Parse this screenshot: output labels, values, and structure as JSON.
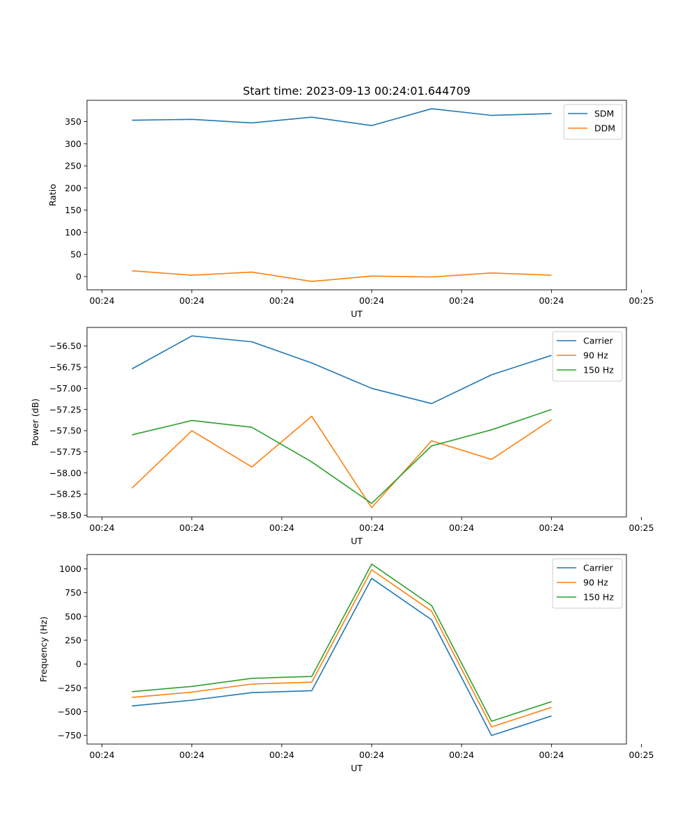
{
  "figure": {
    "title": "Start time: 2023-09-13 00:24:01.644709"
  },
  "colors": {
    "c0": "#1f77b4",
    "c1": "#ff7f0e",
    "c2": "#2ca02c"
  },
  "chart_data": [
    {
      "type": "line",
      "title": "Start time: 2023-09-13 00:24:01.644709",
      "xlabel": "UT",
      "ylabel": "Ratio",
      "x": [
        1,
        2,
        3,
        4,
        5,
        6,
        7,
        8
      ],
      "xlim": [
        0.25,
        9.25
      ],
      "xticks": [
        0.5,
        2,
        3.5,
        5,
        6.5,
        8,
        9.5
      ],
      "xtick_labels": [
        "00:24",
        "00:24",
        "00:24",
        "00:24",
        "00:24",
        "00:24",
        "00:25"
      ],
      "ylim": [
        -30,
        398
      ],
      "yticks": [
        0,
        50,
        100,
        150,
        200,
        250,
        300,
        350
      ],
      "ytick_labels": [
        "0",
        "50",
        "100",
        "150",
        "200",
        "250",
        "300",
        "350"
      ],
      "legend": "top-right",
      "series": [
        {
          "name": "SDM",
          "color": "#1f77b4",
          "values": [
            353,
            355,
            347,
            360,
            341,
            379,
            364,
            368
          ]
        },
        {
          "name": "DDM",
          "color": "#ff7f0e",
          "values": [
            13,
            3,
            10,
            -11,
            1,
            -1,
            8,
            3
          ]
        }
      ]
    },
    {
      "type": "line",
      "title": "",
      "xlabel": "UT",
      "ylabel": "Power (dB)",
      "x": [
        1,
        2,
        3,
        4,
        5,
        6,
        7,
        8
      ],
      "xlim": [
        0.25,
        9.25
      ],
      "xticks": [
        0.5,
        2,
        3.5,
        5,
        6.5,
        8,
        9.5
      ],
      "xtick_labels": [
        "00:24",
        "00:24",
        "00:24",
        "00:24",
        "00:24",
        "00:24",
        "00:25"
      ],
      "ylim": [
        -58.52,
        -56.28
      ],
      "yticks": [
        -58.5,
        -58.25,
        -58.0,
        -57.75,
        -57.5,
        -57.25,
        -57.0,
        -56.75,
        -56.5
      ],
      "ytick_labels": [
        "−58.50",
        "−58.25",
        "−58.00",
        "−57.75",
        "−57.50",
        "−57.25",
        "−57.00",
        "−56.75",
        "−56.50"
      ],
      "legend": "top-right",
      "series": [
        {
          "name": "Carrier",
          "color": "#1f77b4",
          "values": [
            -56.77,
            -56.38,
            -56.45,
            -56.7,
            -57.0,
            -57.18,
            -56.84,
            -56.61
          ]
        },
        {
          "name": "90 Hz",
          "color": "#ff7f0e",
          "values": [
            -58.18,
            -57.5,
            -57.93,
            -57.33,
            -58.41,
            -57.62,
            -57.84,
            -57.37
          ]
        },
        {
          "name": "150 Hz",
          "color": "#2ca02c",
          "values": [
            -57.55,
            -57.38,
            -57.46,
            -57.87,
            -58.36,
            -57.68,
            -57.49,
            -57.25
          ]
        }
      ]
    },
    {
      "type": "line",
      "title": "",
      "xlabel": "UT",
      "ylabel": "Frequency (Hz)",
      "x": [
        1,
        2,
        3,
        4,
        5,
        6,
        7,
        8
      ],
      "xlim": [
        0.25,
        9.25
      ],
      "xticks": [
        0.5,
        2,
        3.5,
        5,
        6.5,
        8,
        9.5
      ],
      "xtick_labels": [
        "00:24",
        "00:24",
        "00:24",
        "00:24",
        "00:24",
        "00:24",
        "00:25"
      ],
      "ylim": [
        -840,
        1150
      ],
      "yticks": [
        -750,
        -500,
        -250,
        0,
        250,
        500,
        750,
        1000
      ],
      "ytick_labels": [
        "−750",
        "−500",
        "−250",
        "0",
        "250",
        "500",
        "750",
        "1000"
      ],
      "legend": "top-right",
      "series": [
        {
          "name": "Carrier",
          "color": "#1f77b4",
          "values": [
            -440,
            -380,
            -300,
            -280,
            900,
            465,
            -750,
            -545
          ]
        },
        {
          "name": "90 Hz",
          "color": "#ff7f0e",
          "values": [
            -350,
            -295,
            -210,
            -190,
            990,
            555,
            -660,
            -455
          ]
        },
        {
          "name": "150 Hz",
          "color": "#2ca02c",
          "values": [
            -290,
            -235,
            -150,
            -130,
            1050,
            615,
            -600,
            -395
          ]
        }
      ]
    }
  ]
}
